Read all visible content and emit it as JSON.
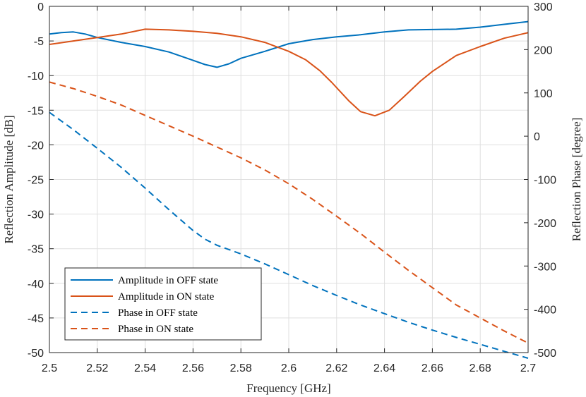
{
  "chart_data": {
    "type": "line",
    "xlabel": "Frequency [GHz]",
    "ylabel_left": "Reflection Amplitude [dB]",
    "ylabel_right": "Reflection Phase [degree]",
    "xlim": [
      2.5,
      2.7
    ],
    "ylim_left": [
      -50,
      0
    ],
    "ylim_right": [
      -500,
      300
    ],
    "x_ticks": [
      "2.5",
      "2.52",
      "2.54",
      "2.56",
      "2.58",
      "2.6",
      "2.62",
      "2.64",
      "2.66",
      "2.68",
      "2.7"
    ],
    "left_ticks": [
      "0",
      "-5",
      "-10",
      "-15",
      "-20",
      "-25",
      "-30",
      "-35",
      "-40",
      "-45",
      "-50"
    ],
    "right_ticks": [
      "300",
      "200",
      "100",
      "0",
      "-100",
      "-200",
      "-300",
      "-400",
      "-500"
    ],
    "grid": true,
    "legend_position": "bottom-left",
    "series": [
      {
        "name": "Amplitude in OFF state",
        "axis": "left",
        "color": "#0072BD",
        "dash": "solid",
        "x": [
          2.5,
          2.505,
          2.51,
          2.515,
          2.52,
          2.53,
          2.54,
          2.55,
          2.56,
          2.565,
          2.57,
          2.575,
          2.58,
          2.59,
          2.6,
          2.61,
          2.62,
          2.63,
          2.64,
          2.65,
          2.66,
          2.67,
          2.68,
          2.69,
          2.7
        ],
        "y": [
          -4.0,
          -3.8,
          -3.7,
          -4.0,
          -4.5,
          -5.2,
          -5.8,
          -6.6,
          -7.8,
          -8.4,
          -8.8,
          -8.3,
          -7.5,
          -6.5,
          -5.4,
          -4.8,
          -4.4,
          -4.1,
          -3.7,
          -3.4,
          -3.35,
          -3.3,
          -3.0,
          -2.6,
          -2.2
        ]
      },
      {
        "name": "Amplitude in ON state",
        "axis": "left",
        "color": "#D95319",
        "dash": "solid",
        "x": [
          2.5,
          2.51,
          2.52,
          2.53,
          2.54,
          2.55,
          2.56,
          2.57,
          2.58,
          2.59,
          2.6,
          2.607,
          2.613,
          2.618,
          2.625,
          2.63,
          2.636,
          2.642,
          2.648,
          2.655,
          2.66,
          2.67,
          2.68,
          2.69,
          2.7
        ],
        "y": [
          -5.5,
          -5.0,
          -4.5,
          -4.0,
          -3.3,
          -3.4,
          -3.6,
          -3.9,
          -4.4,
          -5.2,
          -6.5,
          -7.7,
          -9.3,
          -11.0,
          -13.6,
          -15.2,
          -15.8,
          -15.0,
          -13.1,
          -10.8,
          -9.4,
          -7.1,
          -5.8,
          -4.6,
          -3.8
        ]
      },
      {
        "name": "Phase in OFF state",
        "axis": "right",
        "color": "#0072BD",
        "dash": "dashed",
        "x": [
          2.5,
          2.51,
          2.52,
          2.53,
          2.54,
          2.55,
          2.56,
          2.565,
          2.57,
          2.58,
          2.59,
          2.6,
          2.61,
          2.62,
          2.63,
          2.64,
          2.65,
          2.66,
          2.67,
          2.68,
          2.69,
          2.7
        ],
        "y": [
          55,
          15,
          -28,
          -72,
          -120,
          -170,
          -218,
          -238,
          -252,
          -272,
          -295,
          -320,
          -345,
          -368,
          -390,
          -410,
          -430,
          -448,
          -465,
          -481,
          -497,
          -513
        ]
      },
      {
        "name": "Phase in ON state",
        "axis": "right",
        "color": "#D95319",
        "dash": "dashed",
        "x": [
          2.5,
          2.51,
          2.52,
          2.53,
          2.54,
          2.55,
          2.56,
          2.57,
          2.58,
          2.59,
          2.6,
          2.61,
          2.62,
          2.63,
          2.64,
          2.65,
          2.66,
          2.67,
          2.68,
          2.69,
          2.7
        ],
        "y": [
          125,
          110,
          92,
          72,
          48,
          24,
          0,
          -25,
          -50,
          -78,
          -110,
          -146,
          -185,
          -225,
          -268,
          -310,
          -350,
          -390,
          -420,
          -450,
          -478
        ]
      }
    ]
  }
}
